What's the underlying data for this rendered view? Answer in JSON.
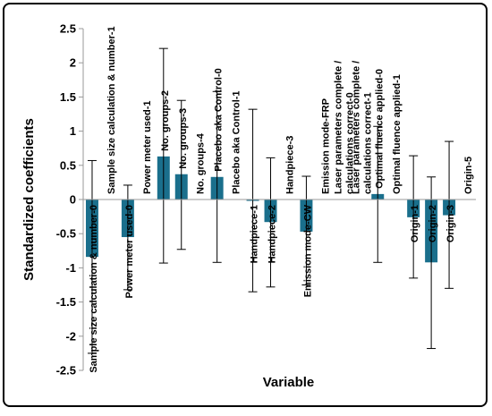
{
  "chart_data": {
    "type": "bar",
    "xlabel": "Variable",
    "ylabel": "Standardized coefficients",
    "ylim": [
      -2.5,
      2.5
    ],
    "ytick_step": 0.5,
    "grid": false,
    "bar_color": "#1a6f8c",
    "categories": [
      "Sample size calculation & number-0",
      "Sample size calculation & number-1",
      "Power meter used-0",
      "Power meter used-1",
      "No. groups-2",
      "No. groups-3",
      "No. groups-4",
      "Placebo aka Control-0",
      "Placebo aka Control-1",
      "Handpiece-1",
      "Handpiece-2",
      "Handpiece-3",
      "Emission mode-CW",
      "Emission mode-FRP",
      "Laser parameters complete / calculations correct-0",
      "Laser parameters complete / calculations correct-1",
      "Optimal fluence applied-0",
      "Optimal fluence applied-1",
      "Origin-1",
      "Origin-2",
      "Origin-3",
      "Origin-5"
    ],
    "values": [
      -0.84,
      0,
      -0.55,
      0,
      0.63,
      0.37,
      0,
      0.33,
      0,
      -0.02,
      -0.33,
      0,
      -0.47,
      0,
      0,
      0,
      0.08,
      0,
      -0.26,
      -0.92,
      -0.23,
      0
    ],
    "error_low": [
      -2.25,
      null,
      -1.32,
      null,
      -0.93,
      -0.73,
      null,
      -0.92,
      null,
      -1.35,
      -1.28,
      null,
      -1.25,
      null,
      null,
      null,
      -0.92,
      null,
      -1.15,
      -2.18,
      -1.3,
      null
    ],
    "error_high": [
      0.57,
      null,
      0.21,
      null,
      2.21,
      1.45,
      null,
      1.58,
      null,
      1.32,
      0.61,
      null,
      0.34,
      null,
      null,
      null,
      1.07,
      null,
      0.64,
      0.33,
      0.85,
      null
    ]
  }
}
